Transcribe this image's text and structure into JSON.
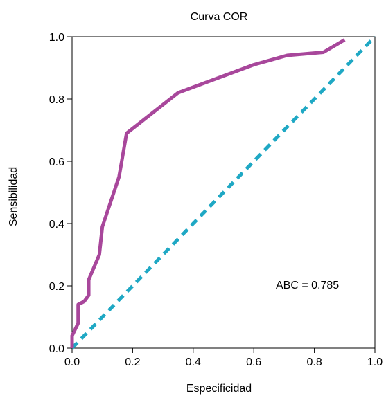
{
  "chart_data": {
    "type": "line",
    "title": "Curva COR",
    "xlabel": "Especificidad",
    "ylabel": "Sensibilidad",
    "xlim": [
      0,
      1
    ],
    "ylim": [
      0,
      1
    ],
    "x_ticks": [
      "0.0",
      "0.2",
      "0.4",
      "0.6",
      "0.8",
      "1.0"
    ],
    "y_ticks": [
      "0.0",
      "0.2",
      "0.4",
      "0.6",
      "0.8",
      "1.0"
    ],
    "grid": false,
    "annotation": "ABC = 0.785",
    "colors": {
      "roc": "#a8479b",
      "reference": "#1fa8c4"
    },
    "series": [
      {
        "x": [
          0,
          0,
          0.01,
          0.02,
          0.02,
          0.04,
          0.055,
          0.055,
          0.09,
          0.1,
          0.155,
          0.18,
          0.35,
          0.6,
          0.71,
          0.83,
          0.9
        ],
        "y": [
          0,
          0.04,
          0.06,
          0.08,
          0.14,
          0.15,
          0.17,
          0.22,
          0.3,
          0.39,
          0.55,
          0.69,
          0.82,
          0.91,
          0.94,
          0.95,
          0.99
        ]
      },
      {
        "x": [
          0,
          1
        ],
        "y": [
          0,
          1
        ]
      }
    ]
  }
}
